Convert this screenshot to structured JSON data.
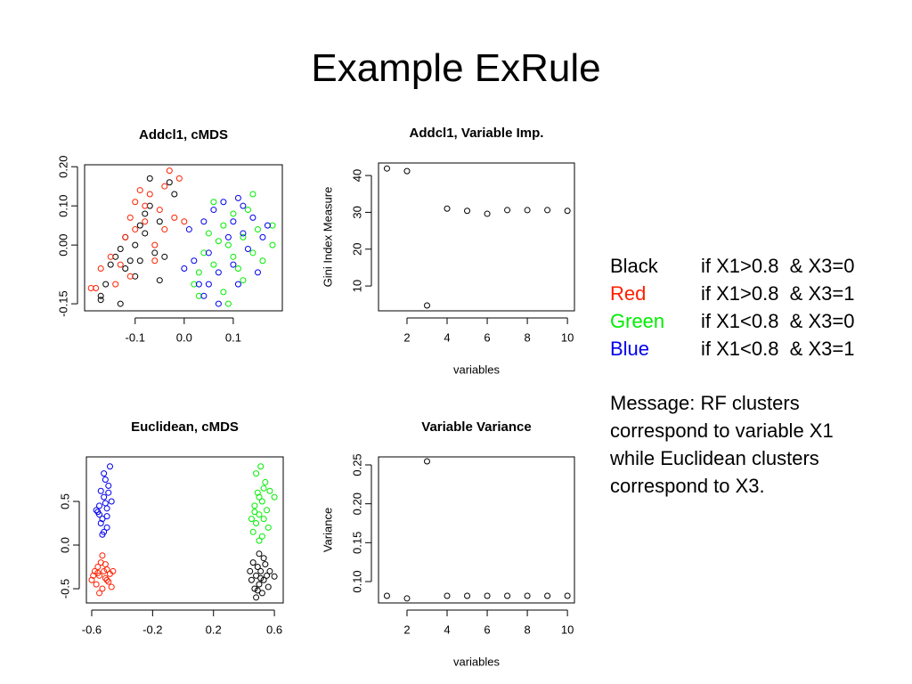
{
  "title": "Example ExRule",
  "chart_data": [
    {
      "type": "scatter",
      "title": "Addcl1, cMDS",
      "xlim": [
        -0.203,
        0.2
      ],
      "xticks": [
        -0.1,
        {
          "value": 0,
          "label": "0.0"
        },
        0.1
      ],
      "ylim": [
        -0.168,
        0.205
      ],
      "yticks": [
        {
          "value": -0.15,
          "label": "-0.15"
        },
        {
          "value": 0,
          "label": "0.00"
        },
        {
          "value": 0.1,
          "label": "0.10"
        },
        {
          "value": 0.2,
          "label": "0.20"
        }
      ],
      "series": [
        {
          "color": "#000000",
          "x": [
            -0.17,
            -0.17,
            -0.16,
            -0.15,
            -0.14,
            -0.13,
            -0.12,
            -0.12,
            -0.11,
            -0.1,
            -0.09,
            -0.08,
            -0.08,
            -0.07,
            -0.07,
            -0.06,
            -0.05,
            -0.04,
            -0.03,
            -0.05,
            -0.02,
            -0.13,
            -0.09,
            -0.1
          ],
          "values": [
            -0.13,
            -0.14,
            -0.1,
            -0.05,
            -0.03,
            -0.01,
            -0.06,
            0.02,
            -0.04,
            0.0,
            0.05,
            0.03,
            0.08,
            0.1,
            0.17,
            -0.02,
            0.06,
            -0.03,
            0.16,
            -0.09,
            0.13,
            -0.15,
            -0.04,
            -0.08
          ]
        },
        {
          "color": "#ff2000",
          "x": [
            -0.19,
            -0.18,
            -0.17,
            -0.15,
            -0.14,
            -0.13,
            -0.12,
            -0.11,
            -0.1,
            -0.1,
            -0.09,
            -0.08,
            -0.07,
            -0.06,
            -0.05,
            -0.04,
            -0.03,
            -0.02,
            -0.01,
            0.0,
            -0.04,
            -0.06,
            -0.11,
            -0.08
          ],
          "values": [
            -0.11,
            -0.11,
            -0.06,
            -0.03,
            -0.1,
            -0.05,
            0.02,
            0.07,
            0.11,
            0.04,
            0.14,
            0.06,
            0.13,
            0.0,
            0.09,
            0.04,
            0.19,
            0.07,
            0.17,
            0.06,
            0.15,
            -0.04,
            -0.08,
            0.1
          ]
        },
        {
          "color": "#00ee00",
          "x": [
            0.02,
            0.03,
            0.04,
            0.05,
            0.06,
            0.06,
            0.07,
            0.08,
            0.08,
            0.09,
            0.1,
            0.1,
            0.11,
            0.12,
            0.12,
            0.13,
            0.14,
            0.15,
            0.16,
            0.18,
            0.18,
            0.09,
            0.03,
            0.14
          ],
          "values": [
            -0.1,
            -0.07,
            -0.02,
            0.03,
            0.11,
            -0.05,
            0.01,
            -0.12,
            0.05,
            0.0,
            -0.03,
            0.08,
            -0.06,
            0.02,
            -0.09,
            0.09,
            -0.02,
            0.04,
            -0.04,
            0.05,
            0.0,
            -0.15,
            -0.13,
            0.13
          ]
        },
        {
          "color": "#0000ee",
          "x": [
            0.0,
            0.01,
            0.02,
            0.03,
            0.04,
            0.05,
            0.05,
            0.06,
            0.07,
            0.08,
            0.09,
            0.1,
            0.1,
            0.11,
            0.11,
            0.12,
            0.13,
            0.14,
            0.15,
            0.16,
            0.17,
            0.07,
            0.12,
            0.04
          ],
          "values": [
            -0.06,
            0.04,
            -0.04,
            -0.1,
            0.06,
            -0.02,
            -0.1,
            0.09,
            -0.07,
            0.11,
            0.02,
            -0.05,
            0.06,
            0.12,
            -0.1,
            0.03,
            -0.01,
            0.07,
            -0.07,
            0.02,
            0.05,
            -0.15,
            0.1,
            -0.13
          ]
        }
      ]
    },
    {
      "type": "scatter",
      "title": "Addcl1, Variable Imp.",
      "xlabel": "variables",
      "ylabel": "Gini Index Measure",
      "xlim": [
        0.58,
        10.35
      ],
      "xticks": [
        2,
        4,
        6,
        8,
        10
      ],
      "ylim": [
        3.25,
        43.4
      ],
      "yticks": [
        10,
        20,
        30,
        40
      ],
      "series": [
        {
          "color": "#000000",
          "x": [
            1,
            2,
            3,
            4,
            5,
            6,
            7,
            8,
            9,
            10
          ],
          "values": [
            41.9,
            41.2,
            4.7,
            31,
            30.4,
            29.6,
            30.6,
            30.6,
            30.6,
            30.4
          ]
        }
      ]
    },
    {
      "type": "scatter",
      "title": "Euclidean, cMDS",
      "xlim": [
        -0.635,
        0.658
      ],
      "xticks": [
        -0.6,
        -0.2,
        0.2,
        0.6
      ],
      "ylim": [
        -0.663,
        1.01
      ],
      "yticks": [
        -0.5,
        {
          "value": 0,
          "label": "0.0"
        },
        0.5
      ],
      "series": [
        {
          "color": "#0000ee",
          "x": [
            -0.56,
            -0.55,
            -0.54,
            -0.53,
            -0.52,
            -0.51,
            -0.5,
            -0.49,
            -0.48,
            -0.5,
            -0.53,
            -0.55,
            -0.47,
            -0.52,
            -0.54,
            -0.49,
            -0.51,
            -0.57,
            -0.5,
            -0.52
          ],
          "values": [
            0.38,
            0.45,
            0.62,
            0.3,
            0.55,
            0.75,
            0.42,
            0.6,
            0.9,
            0.2,
            0.12,
            0.35,
            0.5,
            0.82,
            0.25,
            0.68,
            0.48,
            0.4,
            0.33,
            0.15
          ]
        },
        {
          "color": "#ff2000",
          "x": [
            -0.6,
            -0.58,
            -0.57,
            -0.56,
            -0.55,
            -0.54,
            -0.53,
            -0.52,
            -0.51,
            -0.5,
            -0.49,
            -0.48,
            -0.47,
            -0.53,
            -0.55,
            -0.51,
            -0.56,
            -0.5,
            -0.46,
            -0.59
          ],
          "values": [
            -0.4,
            -0.3,
            -0.45,
            -0.25,
            -0.35,
            -0.2,
            -0.5,
            -0.3,
            -0.38,
            -0.28,
            -0.42,
            -0.33,
            -0.48,
            -0.12,
            -0.55,
            -0.22,
            -0.32,
            -0.4,
            -0.3,
            -0.35
          ]
        },
        {
          "color": "#00ee00",
          "x": [
            0.45,
            0.46,
            0.47,
            0.48,
            0.49,
            0.5,
            0.5,
            0.51,
            0.52,
            0.53,
            0.54,
            0.55,
            0.56,
            0.57,
            0.48,
            0.5,
            0.52,
            0.6,
            0.47,
            0.53
          ],
          "values": [
            0.3,
            0.15,
            0.45,
            0.25,
            0.6,
            0.35,
            0.05,
            0.9,
            0.5,
            0.3,
            0.72,
            0.4,
            0.2,
            0.62,
            0.82,
            0.55,
            0.1,
            0.55,
            0.38,
            0.65
          ]
        },
        {
          "color": "#000000",
          "x": [
            0.44,
            0.45,
            0.46,
            0.47,
            0.48,
            0.49,
            0.5,
            0.5,
            0.51,
            0.52,
            0.53,
            0.54,
            0.55,
            0.56,
            0.57,
            0.48,
            0.51,
            0.53,
            0.6,
            0.49
          ],
          "values": [
            -0.3,
            -0.4,
            -0.2,
            -0.5,
            -0.35,
            -0.25,
            -0.45,
            -0.1,
            -0.3,
            -0.55,
            -0.4,
            -0.22,
            -0.35,
            -0.48,
            -0.3,
            -0.6,
            -0.38,
            -0.15,
            -0.36,
            -0.52
          ]
        }
      ]
    },
    {
      "type": "scatter",
      "title": "Variable Variance",
      "xlabel": "variables",
      "ylabel": "Variance",
      "xlim": [
        0.58,
        10.35
      ],
      "xticks": [
        2,
        4,
        6,
        8,
        10
      ],
      "ylim": [
        0.0725,
        0.2603
      ],
      "yticks": [
        {
          "value": 0.1,
          "label": "0.10"
        },
        0.15,
        {
          "value": 0.2,
          "label": "0.20"
        },
        0.25
      ],
      "series": [
        {
          "color": "#000000",
          "x": [
            1,
            2,
            3,
            4,
            5,
            6,
            7,
            8,
            9,
            10
          ],
          "values": [
            0.0817,
            0.0783,
            0.2546,
            0.0817,
            0.0817,
            0.0817,
            0.0817,
            0.0817,
            0.0817,
            0.0817
          ]
        }
      ]
    }
  ],
  "rules": [
    {
      "name": "Black",
      "color": "#000000",
      "condition": "if X1>0.8  & X3=0"
    },
    {
      "name": "Red",
      "color": "#ff2000",
      "condition": "if X1>0.8  & X3=1"
    },
    {
      "name": "Green",
      "color": "#00ee00",
      "condition": "if X1<0.8  & X3=0"
    },
    {
      "name": "Blue",
      "color": "#0000ee",
      "condition": "if X1<0.8  & X3=1"
    }
  ],
  "message": [
    "Message: RF clusters",
    "correspond to variable X1",
    "while Euclidean clusters",
    "correspond to X3."
  ]
}
